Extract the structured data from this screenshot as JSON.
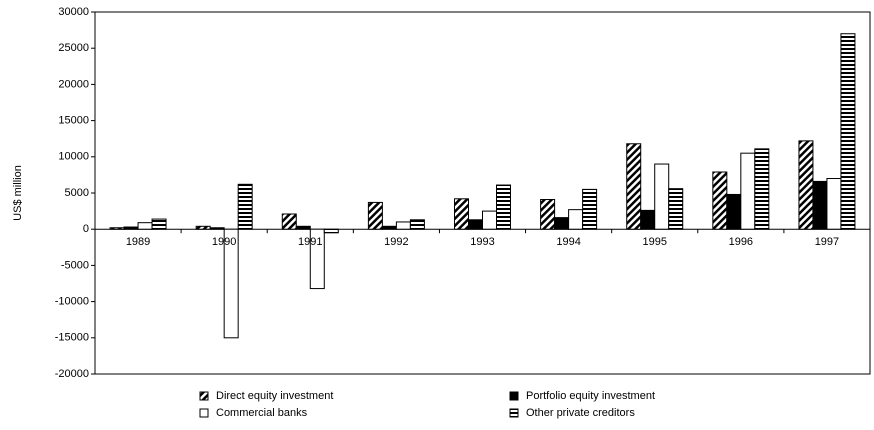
{
  "chart_data": {
    "type": "bar",
    "y_label": "US$ million",
    "categories": [
      "1989",
      "1990",
      "1991",
      "1992",
      "1993",
      "1994",
      "1995",
      "1996",
      "1997"
    ],
    "series": [
      {
        "name": "Direct equity investment",
        "color": "#000000",
        "pattern": "diagonal",
        "values": [
          200,
          400,
          2100,
          3700,
          4200,
          4100,
          11800,
          7900,
          12200
        ]
      },
      {
        "name": "Portfolio equity investment",
        "color": "#000000",
        "pattern": "solid",
        "values": [
          300,
          200,
          400,
          400,
          1300,
          1600,
          2600,
          4800,
          6600
        ]
      },
      {
        "name": "Commercial banks",
        "color": "#000000",
        "pattern": "empty",
        "values": [
          900,
          -15000,
          -8200,
          1000,
          2500,
          2700,
          9000,
          10500,
          7000
        ]
      },
      {
        "name": "Other private creditors",
        "color": "#000000",
        "pattern": "horizontal",
        "values": [
          1400,
          6200,
          -500,
          1300,
          6100,
          5500,
          5600,
          11100,
          27000
        ]
      }
    ],
    "ylim": [
      -20000,
      30000
    ],
    "yticks": [
      -20000,
      -15000,
      -10000,
      -5000,
      0,
      5000,
      10000,
      15000,
      20000,
      25000,
      30000
    ],
    "grid": false,
    "legend": "bottom"
  }
}
